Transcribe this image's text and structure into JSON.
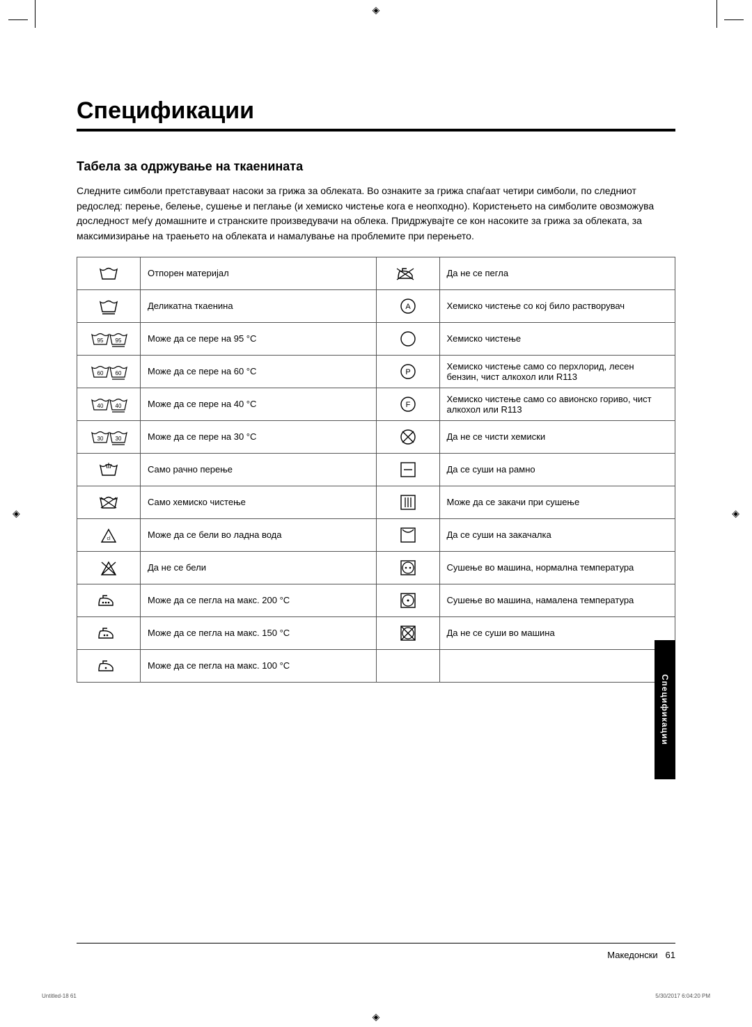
{
  "page_title": "Спецификации",
  "section_title": "Табела за одржување на ткаенината",
  "intro_text": "Следните симболи претставуваат насоки за грижа за облеката. Во ознаките за грижа спаѓаат четири симболи, по следниот редослед: перење, белење, сушење и пеглање (и хемиско чистење кога е неопходно). Користењето на симболите овозможува доследност меѓу домашните и странските произведувачи на облека. Придржувајте се кон насоките за грижа за облеката, за максимизирање на траењето на облеката и намалување на проблемите при перењето.",
  "side_tab": "Спецификации",
  "footer_lang": "Македонски",
  "footer_page": "61",
  "corner_left": "Untitled-18   61",
  "corner_right": "5/30/2017   6:04:20 PM",
  "rows": [
    {
      "l_icon": "wash-heavy",
      "l_text": "Отпорен материјал",
      "r_icon": "iron-no",
      "r_text": "Да не се пегла"
    },
    {
      "l_icon": "wash-delicate",
      "l_text": "Деликатна ткаенина",
      "r_icon": "circle-A",
      "r_text": "Хемиско чистење со кој било растворувач"
    },
    {
      "l_icon": "wash-95",
      "l_text": "Може да се пере на 95 °C",
      "r_icon": "circle",
      "r_text": "Хемиско чистење"
    },
    {
      "l_icon": "wash-60",
      "l_text": "Може да се пере на 60 °C",
      "r_icon": "circle-P",
      "r_text": "Хемиско чистење само со перхлорид, лесен бензин, чист алкохол или R113"
    },
    {
      "l_icon": "wash-40",
      "l_text": "Може да се пере на 40 °C",
      "r_icon": "circle-F",
      "r_text": "Хемиско чистење само со авионско гориво, чист алкохол или R113"
    },
    {
      "l_icon": "wash-30",
      "l_text": "Може да се пере на 30 °C",
      "r_icon": "circle-x",
      "r_text": "Да не се чисти хемиски"
    },
    {
      "l_icon": "hand-wash",
      "l_text": "Само рачно перење",
      "r_icon": "dry-flat",
      "r_text": "Да се суши на рамно"
    },
    {
      "l_icon": "dryclean-only",
      "l_text": "Само хемиско чистење",
      "r_icon": "drip-dry",
      "r_text": "Може да се закачи при сушење"
    },
    {
      "l_icon": "bleach",
      "l_text": "Може да се бели во ладна вода",
      "r_icon": "hang-dry",
      "r_text": "Да се суши на закачалка"
    },
    {
      "l_icon": "bleach-no",
      "l_text": "Да не се бели",
      "r_icon": "tumble-normal",
      "r_text": "Сушење во машина, нормална температура"
    },
    {
      "l_icon": "iron-200",
      "l_text": "Може да се пегла на макс. 200 °C",
      "r_icon": "tumble-low",
      "r_text": "Сушење во машина, намалена температура"
    },
    {
      "l_icon": "iron-150",
      "l_text": "Може да се пегла на макс. 150 °C",
      "r_icon": "tumble-no",
      "r_text": "Да не се суши во машина"
    },
    {
      "l_icon": "iron-100",
      "l_text": "Може да се пегла на макс. 100 °C",
      "r_icon": "",
      "r_text": ""
    }
  ]
}
